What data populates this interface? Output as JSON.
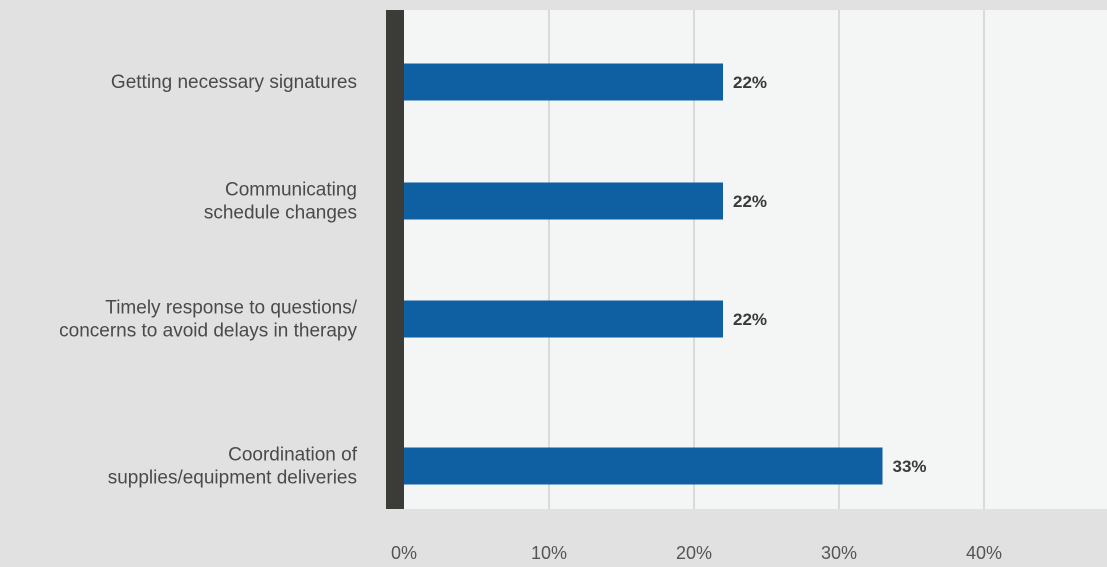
{
  "chart_data": {
    "type": "bar",
    "orientation": "horizontal",
    "categories": [
      [
        "Getting necessary signatures"
      ],
      [
        "Communicating",
        "schedule changes"
      ],
      [
        "Timely response to questions/",
        "concerns to avoid delays in therapy"
      ],
      [
        "Coordination of",
        "supplies/equipment deliveries"
      ]
    ],
    "values": [
      22,
      22,
      22,
      33
    ],
    "value_labels": [
      "22%",
      "22%",
      "22%",
      "33%"
    ],
    "xticks": [
      0,
      10,
      20,
      30,
      40
    ],
    "xtick_labels": [
      "0%",
      "10%",
      "20%",
      "30%",
      "40%"
    ],
    "xlim": [
      0,
      50
    ],
    "grid": true,
    "colors": {
      "bar": "#0f5fa3",
      "plot_background": "#f4f6f6",
      "page_background": "#e1e1e2",
      "axis_line": "#3b3b38",
      "grid": "#c8c8c8"
    }
  }
}
